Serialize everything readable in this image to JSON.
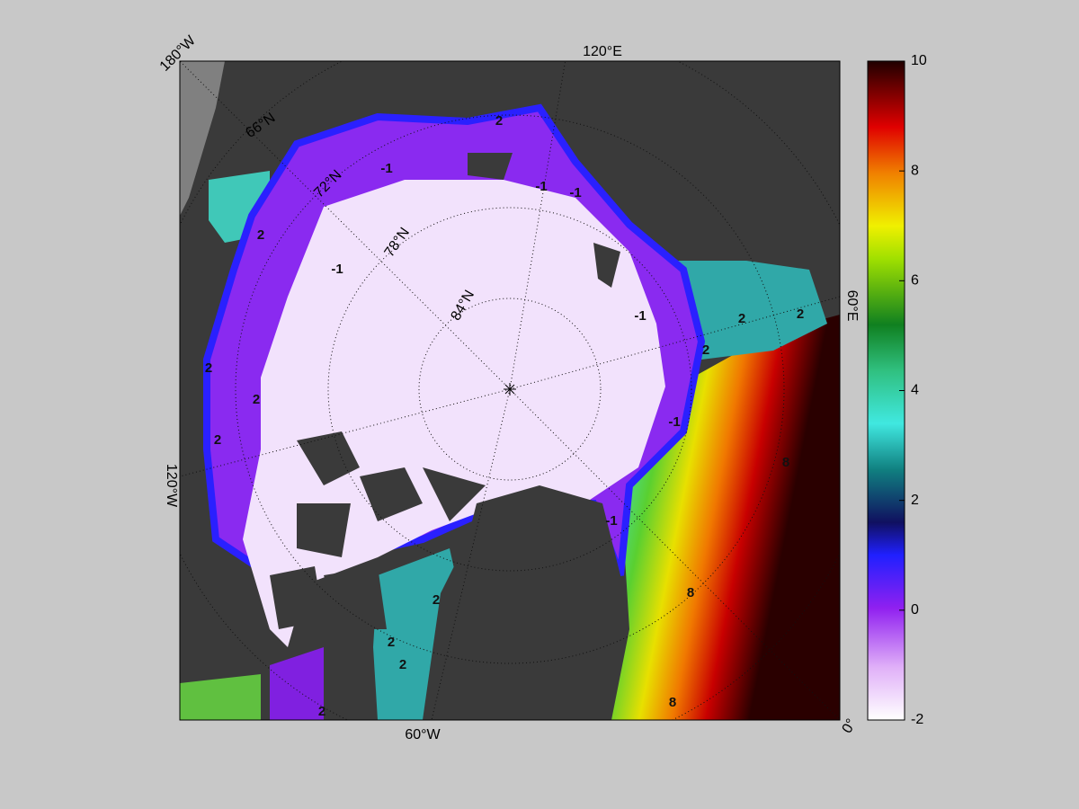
{
  "map": {
    "lon_labels": [
      "180°W",
      "120°E",
      "60°E",
      "0°",
      "60°W",
      "120°W"
    ],
    "lat_labels": [
      "66°N",
      "72°N",
      "78°N",
      "84°N"
    ],
    "contour_labels": [
      -1,
      -1,
      -1,
      -1,
      -1,
      -1,
      -1,
      2,
      2,
      2,
      2,
      2,
      2,
      2,
      2,
      2,
      2,
      2,
      2,
      8,
      8,
      8
    ]
  },
  "colorbar": {
    "lim": [
      -2,
      10
    ],
    "ticks": [
      -2,
      0,
      2,
      4,
      6,
      8,
      10
    ]
  }
}
